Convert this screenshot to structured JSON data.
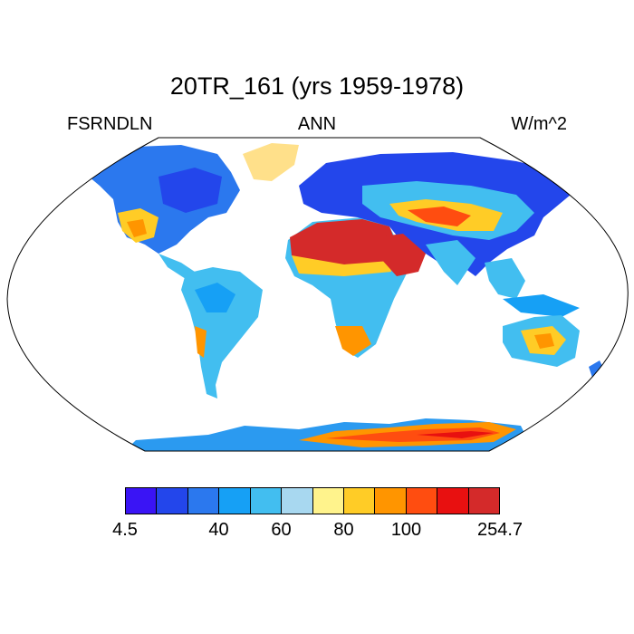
{
  "title": "20TR_161 (yrs 1959-1978)",
  "left_label": "FSRNDLN",
  "center_label": "ANN",
  "right_label": "W/m^2",
  "colorbar": {
    "colors": [
      "#3a14f5",
      "#2346eb",
      "#2b78ee",
      "#16a0f5",
      "#42bef0",
      "#a8d8f0",
      "#fff38c",
      "#ffcc26",
      "#ff9500",
      "#ff4d10",
      "#e81010",
      "#d42a2a"
    ],
    "labels": [
      "4.5",
      "40",
      "60",
      "80",
      "100",
      "254.7"
    ]
  }
}
